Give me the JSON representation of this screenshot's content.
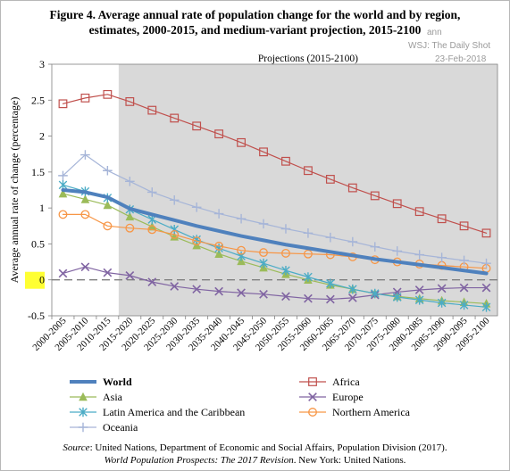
{
  "figure": {
    "title_line1": "Figure 4. Average annual rate of population change for the world and by region,",
    "title_line2": "estimates, 2000-2015, and medium-variant projection, 2015-2100",
    "projection_label": "Projections (2015-2100)",
    "watermark_name": "ann",
    "watermark_site": "WSJ: The Daily Shot",
    "watermark_date": "23-Feb-2018",
    "source_label": "Source",
    "source_text": ": United Nations, Department of Economic and Social Affairs, Population Division (2017).",
    "publication": "World Population Prospects: The 2017 Revision",
    "publication_rest": ". New York: United Nations."
  },
  "colors": {
    "projection_shade": "#d9d9d9",
    "zero_line": "#808080",
    "zero_highlight": "#ffff33"
  },
  "chart_data": {
    "type": "line",
    "ylabel": "Average annual rate of change (percentage)",
    "xlabel": "",
    "ylim": [
      -0.5,
      3
    ],
    "yticks": [
      "-0.5",
      "0",
      "0.5",
      "1",
      "1.5",
      "2",
      "2.5",
      "3"
    ],
    "projection_start_index": 3,
    "categories": [
      "2000-2005",
      "2005-2010",
      "2010-2015",
      "2015-2020",
      "2020-2025",
      "2025-2030",
      "2030-2035",
      "2035-2040",
      "2040-2045",
      "2045-2050",
      "2050-2055",
      "2055-2060",
      "2060-2065",
      "2065-2070",
      "2070-2075",
      "2075-2080",
      "2080-2085",
      "2085-2090",
      "2090-2095",
      "2095-2100"
    ],
    "series": [
      {
        "name": "World",
        "color": "#4f81bd",
        "marker": "none",
        "width": 4,
        "values": [
          1.25,
          1.22,
          1.15,
          0.99,
          0.91,
          0.83,
          0.75,
          0.68,
          0.61,
          0.55,
          0.49,
          0.44,
          0.39,
          0.34,
          0.29,
          0.25,
          0.21,
          0.17,
          0.13,
          0.09
        ]
      },
      {
        "name": "Africa",
        "color": "#c0504d",
        "marker": "square",
        "width": 1.2,
        "values": [
          2.45,
          2.53,
          2.58,
          2.48,
          2.36,
          2.25,
          2.14,
          2.03,
          1.91,
          1.78,
          1.65,
          1.52,
          1.4,
          1.28,
          1.17,
          1.06,
          0.95,
          0.85,
          0.75,
          0.65
        ]
      },
      {
        "name": "Asia",
        "color": "#9bbb59",
        "marker": "triangle",
        "width": 1.2,
        "values": [
          1.2,
          1.12,
          1.04,
          0.88,
          0.74,
          0.6,
          0.48,
          0.36,
          0.26,
          0.17,
          0.08,
          0.0,
          -0.07,
          -0.13,
          -0.19,
          -0.23,
          -0.26,
          -0.29,
          -0.31,
          -0.33
        ]
      },
      {
        "name": "Europe",
        "color": "#8064a2",
        "marker": "x",
        "width": 1.2,
        "values": [
          0.09,
          0.18,
          0.1,
          0.06,
          -0.03,
          -0.09,
          -0.13,
          -0.16,
          -0.18,
          -0.2,
          -0.23,
          -0.26,
          -0.27,
          -0.25,
          -0.21,
          -0.17,
          -0.14,
          -0.12,
          -0.11,
          -0.11
        ]
      },
      {
        "name": "Latin America and the Caribbean",
        "color": "#4bacc6",
        "marker": "star",
        "width": 1.2,
        "values": [
          1.32,
          1.23,
          1.14,
          0.98,
          0.84,
          0.7,
          0.56,
          0.44,
          0.33,
          0.23,
          0.13,
          0.04,
          -0.05,
          -0.13,
          -0.19,
          -0.24,
          -0.28,
          -0.32,
          -0.35,
          -0.38
        ]
      },
      {
        "name": "Northern America",
        "color": "#f79646",
        "marker": "circle",
        "width": 1.2,
        "values": [
          0.91,
          0.91,
          0.75,
          0.72,
          0.7,
          0.63,
          0.54,
          0.47,
          0.41,
          0.38,
          0.37,
          0.36,
          0.35,
          0.32,
          0.28,
          0.25,
          0.22,
          0.2,
          0.18,
          0.16
        ]
      },
      {
        "name": "Oceania",
        "color": "#a6b5d8",
        "marker": "plus",
        "width": 1.2,
        "values": [
          1.45,
          1.74,
          1.52,
          1.37,
          1.22,
          1.11,
          1.01,
          0.92,
          0.85,
          0.78,
          0.71,
          0.65,
          0.59,
          0.53,
          0.46,
          0.4,
          0.35,
          0.31,
          0.27,
          0.23
        ]
      }
    ]
  }
}
